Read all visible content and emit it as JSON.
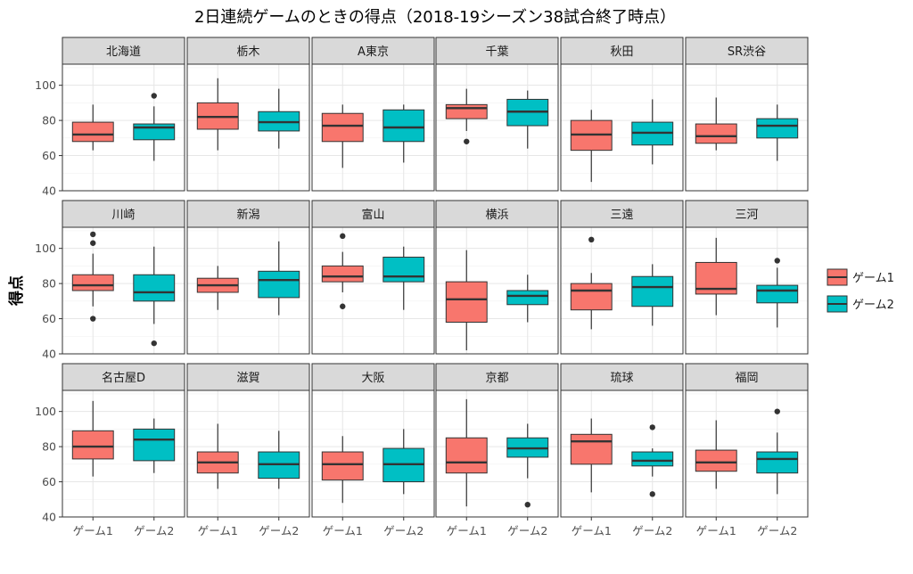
{
  "chart_data": {
    "type": "boxplot",
    "title": "2日連続ゲームのときの得点（2018-19シーズン38試合終了時点）",
    "ylabel": "得点",
    "xlabel": "",
    "ylim": [
      40,
      112
    ],
    "yticks": [
      40,
      60,
      80,
      100
    ],
    "categories": [
      "ゲーム1",
      "ゲーム2"
    ],
    "legend": {
      "position": "right",
      "entries": [
        {
          "label": "ゲーム1",
          "color": "#F8766D"
        },
        {
          "label": "ゲーム2",
          "color": "#00BFC4"
        }
      ]
    },
    "grid": true,
    "panel_strip_color": "#D9D9D9",
    "panels": [
      {
        "name": "北海道",
        "boxes": [
          {
            "group": "ゲーム1",
            "whisker_low": 63,
            "q1": 68,
            "median": 72,
            "q3": 79,
            "whisker_high": 89,
            "outliers": []
          },
          {
            "group": "ゲーム2",
            "whisker_low": 57,
            "q1": 69,
            "median": 76,
            "q3": 78,
            "whisker_high": 88,
            "outliers": [
              94
            ]
          }
        ]
      },
      {
        "name": "栃木",
        "boxes": [
          {
            "group": "ゲーム1",
            "whisker_low": 63,
            "q1": 75,
            "median": 82,
            "q3": 90,
            "whisker_high": 104,
            "outliers": []
          },
          {
            "group": "ゲーム2",
            "whisker_low": 64,
            "q1": 74,
            "median": 79,
            "q3": 85,
            "whisker_high": 98,
            "outliers": []
          }
        ]
      },
      {
        "name": "A東京",
        "boxes": [
          {
            "group": "ゲーム1",
            "whisker_low": 53,
            "q1": 68,
            "median": 77,
            "q3": 84,
            "whisker_high": 89,
            "outliers": []
          },
          {
            "group": "ゲーム2",
            "whisker_low": 56,
            "q1": 68,
            "median": 76,
            "q3": 86,
            "whisker_high": 89,
            "outliers": []
          }
        ]
      },
      {
        "name": "千葉",
        "boxes": [
          {
            "group": "ゲーム1",
            "whisker_low": 74,
            "q1": 81,
            "median": 87,
            "q3": 89,
            "whisker_high": 98,
            "outliers": [
              68
            ]
          },
          {
            "group": "ゲーム2",
            "whisker_low": 64,
            "q1": 77,
            "median": 85,
            "q3": 92,
            "whisker_high": 97,
            "outliers": []
          }
        ]
      },
      {
        "name": "秋田",
        "boxes": [
          {
            "group": "ゲーム1",
            "whisker_low": 45,
            "q1": 63,
            "median": 72,
            "q3": 80,
            "whisker_high": 86,
            "outliers": []
          },
          {
            "group": "ゲーム2",
            "whisker_low": 55,
            "q1": 66,
            "median": 73,
            "q3": 79,
            "whisker_high": 92,
            "outliers": []
          }
        ]
      },
      {
        "name": "SR渋谷",
        "boxes": [
          {
            "group": "ゲーム1",
            "whisker_low": 63,
            "q1": 67,
            "median": 71,
            "q3": 78,
            "whisker_high": 93,
            "outliers": []
          },
          {
            "group": "ゲーム2",
            "whisker_low": 57,
            "q1": 70,
            "median": 77,
            "q3": 81,
            "whisker_high": 89,
            "outliers": []
          }
        ]
      },
      {
        "name": "川崎",
        "boxes": [
          {
            "group": "ゲーム1",
            "whisker_low": 67,
            "q1": 76,
            "median": 79,
            "q3": 85,
            "whisker_high": 97,
            "outliers": [
              108,
              103,
              60
            ]
          },
          {
            "group": "ゲーム2",
            "whisker_low": 57,
            "q1": 70,
            "median": 75,
            "q3": 85,
            "whisker_high": 101,
            "outliers": [
              46
            ]
          }
        ]
      },
      {
        "name": "新潟",
        "boxes": [
          {
            "group": "ゲーム1",
            "whisker_low": 65,
            "q1": 75,
            "median": 79,
            "q3": 83,
            "whisker_high": 90,
            "outliers": []
          },
          {
            "group": "ゲーム2",
            "whisker_low": 62,
            "q1": 72,
            "median": 82,
            "q3": 87,
            "whisker_high": 104,
            "outliers": []
          }
        ]
      },
      {
        "name": "富山",
        "boxes": [
          {
            "group": "ゲーム1",
            "whisker_low": 75,
            "q1": 81,
            "median": 84,
            "q3": 90,
            "whisker_high": 98,
            "outliers": [
              107,
              67
            ]
          },
          {
            "group": "ゲーム2",
            "whisker_low": 65,
            "q1": 81,
            "median": 84,
            "q3": 95,
            "whisker_high": 101,
            "outliers": []
          }
        ]
      },
      {
        "name": "横浜",
        "boxes": [
          {
            "group": "ゲーム1",
            "whisker_low": 42,
            "q1": 58,
            "median": 71,
            "q3": 81,
            "whisker_high": 99,
            "outliers": []
          },
          {
            "group": "ゲーム2",
            "whisker_low": 58,
            "q1": 68,
            "median": 73,
            "q3": 76,
            "whisker_high": 85,
            "outliers": []
          }
        ]
      },
      {
        "name": "三遠",
        "boxes": [
          {
            "group": "ゲーム1",
            "whisker_low": 54,
            "q1": 65,
            "median": 76,
            "q3": 80,
            "whisker_high": 86,
            "outliers": [
              105
            ]
          },
          {
            "group": "ゲーム2",
            "whisker_low": 56,
            "q1": 67,
            "median": 78,
            "q3": 84,
            "whisker_high": 91,
            "outliers": []
          }
        ]
      },
      {
        "name": "三河",
        "boxes": [
          {
            "group": "ゲーム1",
            "whisker_low": 62,
            "q1": 74,
            "median": 77,
            "q3": 92,
            "whisker_high": 106,
            "outliers": []
          },
          {
            "group": "ゲーム2",
            "whisker_low": 55,
            "q1": 69,
            "median": 76,
            "q3": 79,
            "whisker_high": 89,
            "outliers": [
              93
            ]
          }
        ]
      },
      {
        "name": "名古屋D",
        "boxes": [
          {
            "group": "ゲーム1",
            "whisker_low": 63,
            "q1": 73,
            "median": 80,
            "q3": 89,
            "whisker_high": 106,
            "outliers": []
          },
          {
            "group": "ゲーム2",
            "whisker_low": 65,
            "q1": 72,
            "median": 84,
            "q3": 90,
            "whisker_high": 96,
            "outliers": []
          }
        ]
      },
      {
        "name": "滋賀",
        "boxes": [
          {
            "group": "ゲーム1",
            "whisker_low": 56,
            "q1": 65,
            "median": 71,
            "q3": 77,
            "whisker_high": 93,
            "outliers": []
          },
          {
            "group": "ゲーム2",
            "whisker_low": 56,
            "q1": 62,
            "median": 70,
            "q3": 77,
            "whisker_high": 89,
            "outliers": []
          }
        ]
      },
      {
        "name": "大阪",
        "boxes": [
          {
            "group": "ゲーム1",
            "whisker_low": 48,
            "q1": 61,
            "median": 70,
            "q3": 77,
            "whisker_high": 86,
            "outliers": []
          },
          {
            "group": "ゲーム2",
            "whisker_low": 53,
            "q1": 60,
            "median": 70,
            "q3": 79,
            "whisker_high": 90,
            "outliers": []
          }
        ]
      },
      {
        "name": "京都",
        "boxes": [
          {
            "group": "ゲーム1",
            "whisker_low": 46,
            "q1": 65,
            "median": 71,
            "q3": 85,
            "whisker_high": 107,
            "outliers": []
          },
          {
            "group": "ゲーム2",
            "whisker_low": 62,
            "q1": 74,
            "median": 79,
            "q3": 85,
            "whisker_high": 93,
            "outliers": [
              47
            ]
          }
        ]
      },
      {
        "name": "琉球",
        "boxes": [
          {
            "group": "ゲーム1",
            "whisker_low": 54,
            "q1": 70,
            "median": 83,
            "q3": 87,
            "whisker_high": 96,
            "outliers": []
          },
          {
            "group": "ゲーム2",
            "whisker_low": 63,
            "q1": 69,
            "median": 72,
            "q3": 77,
            "whisker_high": 79,
            "outliers": [
              91,
              53
            ]
          }
        ]
      },
      {
        "name": "福岡",
        "boxes": [
          {
            "group": "ゲーム1",
            "whisker_low": 56,
            "q1": 66,
            "median": 71,
            "q3": 78,
            "whisker_high": 95,
            "outliers": []
          },
          {
            "group": "ゲーム2",
            "whisker_low": 53,
            "q1": 65,
            "median": 73,
            "q3": 77,
            "whisker_high": 88,
            "outliers": [
              100
            ]
          }
        ]
      }
    ]
  }
}
